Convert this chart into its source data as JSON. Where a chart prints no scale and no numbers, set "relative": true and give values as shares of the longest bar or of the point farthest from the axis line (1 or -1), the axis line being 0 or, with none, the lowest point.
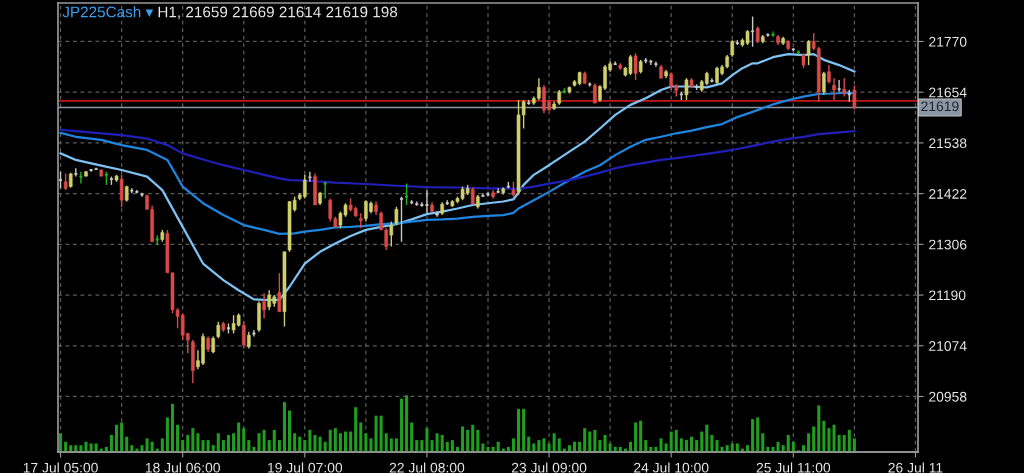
{
  "chart_data": [
    {
      "type": "candlestick",
      "title": "JP225Cash ▾",
      "subtitle": "H1, 21659 21669 21614 21619 198",
      "categories": [
        "17 Jul 05:00",
        null,
        null,
        null,
        null,
        null,
        null,
        null,
        null,
        null,
        null,
        null,
        null,
        null,
        null,
        null,
        null,
        null,
        null,
        null,
        null,
        null,
        null,
        null,
        "18 Jul 06:00",
        null,
        null,
        null,
        null,
        null,
        null,
        null,
        null,
        null,
        null,
        null,
        null,
        null,
        null,
        null,
        null,
        null,
        null,
        null,
        null,
        null,
        null,
        null,
        "19 Jul 07:00",
        null,
        null,
        null,
        null,
        null,
        null,
        null,
        null,
        null,
        null,
        null,
        null,
        null,
        null,
        null,
        null,
        null,
        null,
        null,
        null,
        null,
        null,
        null,
        "22 Jul 08:00",
        null,
        null,
        null,
        null,
        null,
        null,
        null,
        null,
        null,
        null,
        null,
        null,
        null,
        null,
        null,
        null,
        null,
        null,
        null,
        null,
        null,
        null,
        null,
        "23 Jul 09:00",
        null,
        null,
        null,
        null,
        null,
        null,
        null,
        null,
        null,
        null,
        null,
        null,
        null,
        null,
        null,
        null,
        null,
        null,
        null,
        null,
        null,
        null,
        null,
        "24 Jul 10:00",
        null,
        null,
        null,
        null,
        null,
        null,
        null,
        null,
        null,
        null,
        null,
        null,
        null,
        null,
        null,
        null,
        null,
        null,
        null,
        null,
        null,
        null,
        null,
        "25 Jul 11:00",
        null,
        null,
        null,
        null,
        null,
        null,
        null,
        null,
        null,
        null,
        null,
        null,
        null,
        null,
        null,
        null,
        null,
        null,
        null,
        null,
        null,
        null,
        null,
        "26 Jul 11"
      ],
      "ohlc": [
        [
          21453,
          21472,
          21434,
          21453
        ],
        [
          21449,
          21468,
          21430,
          21434
        ],
        [
          21438,
          21470,
          21436,
          21467
        ],
        [
          21467,
          21480,
          21461,
          21467
        ],
        [
          21461,
          21472,
          21445,
          21461
        ],
        [
          21462,
          21474,
          21461,
          21472
        ],
        [
          21476,
          21478,
          21472,
          21476
        ],
        [
          21478,
          21481,
          21476,
          21478
        ],
        [
          21476,
          21478,
          21461,
          21462
        ],
        [
          21465,
          21472,
          21442,
          21465
        ],
        [
          21455,
          21461,
          21442,
          21455
        ],
        [
          21453,
          21465,
          21449,
          21462
        ],
        [
          21455,
          21465,
          21391,
          21407
        ],
        [
          21407,
          21440,
          21404,
          21438
        ],
        [
          21429,
          21434,
          21423,
          21429
        ],
        [
          21426,
          21430,
          21423,
          21426
        ],
        [
          21420,
          21424,
          21415,
          21420
        ],
        [
          21417,
          21420,
          21386,
          21386
        ],
        [
          21386,
          21394,
          21312,
          21312
        ],
        [
          21317,
          21327,
          21304,
          21317
        ],
        [
          21317,
          21339,
          21312,
          21333
        ],
        [
          21331,
          21339,
          21241,
          21241
        ],
        [
          21241,
          21241,
          21148,
          21156
        ],
        [
          21156,
          21160,
          21114,
          21141
        ],
        [
          21144,
          21148,
          21087,
          21098
        ],
        [
          21102,
          21102,
          21057,
          21087
        ],
        [
          21083,
          21087,
          20988,
          21017
        ],
        [
          21026,
          21064,
          21020,
          21040
        ],
        [
          21034,
          21102,
          21030,
          21095
        ],
        [
          21091,
          21095,
          21060,
          21066
        ],
        [
          21060,
          21095,
          21057,
          21091
        ],
        [
          21095,
          21129,
          21091,
          21121
        ],
        [
          21125,
          21129,
          21106,
          21110
        ],
        [
          21114,
          21125,
          21102,
          21114
        ],
        [
          21110,
          21144,
          21102,
          21125
        ],
        [
          21121,
          21148,
          21118,
          21144
        ],
        [
          21121,
          21129,
          21068,
          21076
        ],
        [
          21072,
          21106,
          21068,
          21098
        ],
        [
          21102,
          21110,
          21095,
          21102
        ],
        [
          21110,
          21175,
          21106,
          21171
        ],
        [
          21175,
          21194,
          21137,
          21156
        ],
        [
          21163,
          21201,
          21156,
          21190
        ],
        [
          21171,
          21190,
          21163,
          21186
        ],
        [
          21196,
          21240,
          21152,
          21152
        ],
        [
          21152,
          21289,
          21118,
          21289
        ],
        [
          21293,
          21404,
          21289,
          21404
        ],
        [
          21385,
          21415,
          21381,
          21407
        ],
        [
          21411,
          21423,
          21407,
          21419
        ],
        [
          21415,
          21465,
          21411,
          21453
        ],
        [
          21459,
          21472,
          21449,
          21459
        ],
        [
          21461,
          21468,
          21396,
          21396
        ],
        [
          21400,
          21426,
          21396,
          21423
        ],
        [
          21445,
          21449,
          21411,
          21445
        ],
        [
          21407,
          21411,
          21358,
          21365
        ],
        [
          21365,
          21369,
          21343,
          21346
        ],
        [
          21350,
          21381,
          21343,
          21377
        ],
        [
          21373,
          21400,
          21369,
          21396
        ],
        [
          21396,
          21411,
          21381,
          21385
        ],
        [
          21388,
          21392,
          21369,
          21371
        ],
        [
          21365,
          21377,
          21343,
          21360
        ],
        [
          21365,
          21407,
          21358,
          21404
        ],
        [
          21381,
          21404,
          21377,
          21400
        ],
        [
          21396,
          21404,
          21373,
          21381
        ],
        [
          21377,
          21381,
          21339,
          21339
        ],
        [
          21339,
          21343,
          21293,
          21301
        ],
        [
          21327,
          21358,
          21301,
          21350
        ],
        [
          21354,
          21392,
          21350,
          21386
        ],
        [
          21410,
          21415,
          21312,
          21410
        ],
        [
          21415,
          21445,
          21396,
          21415
        ],
        [
          21402,
          21407,
          21398,
          21402
        ],
        [
          21398,
          21404,
          21394,
          21398
        ],
        [
          21396,
          21402,
          21392,
          21396
        ],
        [
          21396,
          21430,
          21377,
          21396
        ],
        [
          21396,
          21402,
          21381,
          21381
        ],
        [
          21377,
          21381,
          21369,
          21373
        ],
        [
          21377,
          21402,
          21373,
          21398
        ],
        [
          21400,
          21407,
          21396,
          21400
        ],
        [
          21394,
          21407,
          21392,
          21404
        ],
        [
          21404,
          21415,
          21400,
          21411
        ],
        [
          21411,
          21438,
          21407,
          21432
        ],
        [
          21423,
          21442,
          21419,
          21434
        ],
        [
          21432,
          21436,
          21398,
          21398
        ],
        [
          21392,
          21419,
          21388,
          21415
        ],
        [
          21417,
          21423,
          21415,
          21417
        ],
        [
          21420,
          21426,
          21417,
          21420
        ],
        [
          21424,
          21430,
          21411,
          21415
        ],
        [
          21426,
          21434,
          21423,
          21426
        ],
        [
          21424,
          21436,
          21420,
          21433
        ],
        [
          21438,
          21449,
          21434,
          21438
        ],
        [
          21430,
          21449,
          21415,
          21419
        ],
        [
          21426,
          21636,
          21419,
          21602
        ],
        [
          21602,
          21636,
          21571,
          21632
        ],
        [
          21629,
          21636,
          21625,
          21629
        ],
        [
          21629,
          21644,
          21625,
          21640
        ],
        [
          21640,
          21686,
          21636,
          21665
        ],
        [
          21665,
          21670,
          21606,
          21613
        ],
        [
          21632,
          21636,
          21613,
          21613
        ],
        [
          21617,
          21632,
          21613,
          21627
        ],
        [
          21629,
          21659,
          21625,
          21655
        ],
        [
          21655,
          21663,
          21651,
          21655
        ],
        [
          21655,
          21667,
          21651,
          21665
        ],
        [
          21670,
          21682,
          21667,
          21678
        ],
        [
          21674,
          21701,
          21670,
          21699
        ],
        [
          21697,
          21701,
          21674,
          21674
        ],
        [
          21672,
          21676,
          21667,
          21672
        ],
        [
          21670,
          21674,
          21629,
          21629
        ],
        [
          21636,
          21670,
          21632,
          21667
        ],
        [
          21663,
          21716,
          21659,
          21712
        ],
        [
          21705,
          21724,
          21701,
          21719
        ],
        [
          21718,
          21724,
          21716,
          21718
        ],
        [
          21716,
          21720,
          21705,
          21709
        ],
        [
          21693,
          21712,
          21690,
          21709
        ],
        [
          21697,
          21739,
          21693,
          21735
        ],
        [
          21737,
          21743,
          21682,
          21697
        ],
        [
          21701,
          21728,
          21697,
          21724
        ],
        [
          21726,
          21732,
          21720,
          21726
        ],
        [
          21724,
          21728,
          21716,
          21724
        ],
        [
          21718,
          21724,
          21712,
          21718
        ],
        [
          21712,
          21716,
          21686,
          21686
        ],
        [
          21691,
          21705,
          21686,
          21701
        ],
        [
          21696,
          21699,
          21659,
          21667
        ],
        [
          21668,
          21672,
          21644,
          21658
        ],
        [
          21649,
          21655,
          21636,
          21649
        ],
        [
          21648,
          21686,
          21636,
          21682
        ],
        [
          21682,
          21686,
          21663,
          21667
        ],
        [
          21666,
          21672,
          21659,
          21666
        ],
        [
          21659,
          21682,
          21655,
          21678
        ],
        [
          21674,
          21701,
          21670,
          21697
        ],
        [
          21680,
          21686,
          21676,
          21680
        ],
        [
          21676,
          21712,
          21672,
          21709
        ],
        [
          21697,
          21716,
          21693,
          21712
        ],
        [
          21712,
          21739,
          21709,
          21735
        ],
        [
          21739,
          21773,
          21735,
          21770
        ],
        [
          21766,
          21773,
          21762,
          21766
        ],
        [
          21762,
          21777,
          21758,
          21773
        ],
        [
          21766,
          21796,
          21762,
          21793
        ],
        [
          21793,
          21827,
          21758,
          21793
        ],
        [
          21800,
          21804,
          21766,
          21770
        ],
        [
          21770,
          21785,
          21766,
          21781
        ],
        [
          21785,
          21789,
          21781,
          21785
        ],
        [
          21785,
          21793,
          21781,
          21785
        ],
        [
          21781,
          21785,
          21762,
          21767
        ],
        [
          21766,
          21781,
          21762,
          21777
        ],
        [
          21770,
          21773,
          21750,
          21754
        ],
        [
          21752,
          21754,
          21748,
          21752
        ],
        [
          21745,
          21750,
          21741,
          21745
        ],
        [
          21739,
          21743,
          21709,
          21716
        ],
        [
          21739,
          21773,
          21716,
          21770
        ],
        [
          21770,
          21789,
          21750,
          21754
        ],
        [
          21754,
          21758,
          21632,
          21655
        ],
        [
          21655,
          21701,
          21648,
          21697
        ],
        [
          21701,
          21716,
          21674,
          21678
        ],
        [
          21670,
          21686,
          21636,
          21659
        ],
        [
          21661,
          21682,
          21655,
          21661
        ],
        [
          21661,
          21686,
          21644,
          21651
        ],
        [
          21649,
          21659,
          21632,
          21649
        ],
        [
          21659,
          21669,
          21614,
          21619
        ],
        null,
        null,
        null,
        null,
        null,
        null,
        null,
        null,
        null,
        null,
        null,
        null
      ],
      "colors": [
        "#c8c8c8",
        "#d94a4a",
        "#cfcf6e",
        "#c8c8c8",
        "#22b422",
        "#cfcf6e",
        "#c8c8c8",
        "#c8c8c8",
        "#d94a4a",
        "#22b422",
        "#c8c8c8",
        "#cfcf6e",
        "#d94a4a",
        "#cfcf6e",
        "#c8c8c8",
        "#c8c8c8",
        "#c8c8c8",
        "#d94a4a",
        "#d94a4a",
        "#22b422",
        "#cfcf6e",
        "#d94a4a",
        "#d94a4a",
        "#d94a4a",
        "#d94a4a",
        "#d94a4a",
        "#d94a4a",
        "#cfcf6e",
        "#cfcf6e",
        "#d94a4a",
        "#cfcf6e",
        "#cfcf6e",
        "#d94a4a",
        "#c8c8c8",
        "#cfcf6e",
        "#cfcf6e",
        "#d94a4a",
        "#cfcf6e",
        "#c8c8c8",
        "#cfcf6e",
        "#d94a4a",
        "#cfcf6e",
        "#cfcf6e",
        "#d94a4a",
        "#cfcf6e",
        "#cfcf6e",
        "#cfcf6e",
        "#cfcf6e",
        "#cfcf6e",
        "#c8c8c8",
        "#d94a4a",
        "#cfcf6e",
        "#22b422",
        "#d94a4a",
        "#d94a4a",
        "#cfcf6e",
        "#cfcf6e",
        "#d94a4a",
        "#d94a4a",
        "#d94a4a",
        "#cfcf6e",
        "#cfcf6e",
        "#d94a4a",
        "#d94a4a",
        "#d94a4a",
        "#cfcf6e",
        "#cfcf6e",
        "#c8c8c8",
        "#22b422",
        "#c8c8c8",
        "#c8c8c8",
        "#c8c8c8",
        "#c8c8c8",
        "#d94a4a",
        "#c8c8c8",
        "#cfcf6e",
        "#c8c8c8",
        "#cfcf6e",
        "#cfcf6e",
        "#cfcf6e",
        "#cfcf6e",
        "#d94a4a",
        "#cfcf6e",
        "#c8c8c8",
        "#c8c8c8",
        "#d94a4a",
        "#c8c8c8",
        "#cfcf6e",
        "#c8c8c8",
        "#d94a4a",
        "#cfcf6e",
        "#cfcf6e",
        "#c8c8c8",
        "#cfcf6e",
        "#cfcf6e",
        "#d94a4a",
        "#d94a4a",
        "#cfcf6e",
        "#cfcf6e",
        "#22b422",
        "#cfcf6e",
        "#cfcf6e",
        "#cfcf6e",
        "#d94a4a",
        "#c8c8c8",
        "#d94a4a",
        "#cfcf6e",
        "#cfcf6e",
        "#cfcf6e",
        "#c8c8c8",
        "#d94a4a",
        "#cfcf6e",
        "#cfcf6e",
        "#d94a4a",
        "#cfcf6e",
        "#c8c8c8",
        "#c8c8c8",
        "#c8c8c8",
        "#d94a4a",
        "#cfcf6e",
        "#d94a4a",
        "#d94a4a",
        "#c8c8c8",
        "#cfcf6e",
        "#d94a4a",
        "#c8c8c8",
        "#cfcf6e",
        "#cfcf6e",
        "#c8c8c8",
        "#cfcf6e",
        "#cfcf6e",
        "#cfcf6e",
        "#cfcf6e",
        "#c8c8c8",
        "#cfcf6e",
        "#cfcf6e",
        "#c8c8c8",
        "#d94a4a",
        "#cfcf6e",
        "#c8c8c8",
        "#22b422",
        "#d94a4a",
        "#cfcf6e",
        "#d94a4a",
        "#c8c8c8",
        "#22b422",
        "#d94a4a",
        "#cfcf6e",
        "#d94a4a",
        "#d94a4a",
        "#cfcf6e",
        "#d94a4a",
        "#d94a4a",
        "#c8c8c8",
        "#d94a4a",
        "#c8c8c8",
        "#d94a4a",
        null,
        null,
        null,
        null,
        null,
        null,
        null,
        null,
        null,
        null,
        null,
        null
      ],
      "series": [
        {
          "type": "line",
          "color": "#7ec3f5",
          "values": [
            21514,
            null,
            null,
            21499,
            null,
            null,
            null,
            null,
            21486,
            null,
            null,
            null,
            21476,
            null,
            null,
            null,
            null,
            21461,
            null,
            null,
            21430,
            null,
            null,
            null,
            21346,
            null,
            null,
            null,
            21262,
            null,
            null,
            null,
            21224,
            null,
            null,
            21201,
            null,
            null,
            21180,
            null,
            21179,
            null,
            null,
            21179,
            null,
            21209,
            null,
            null,
            21262,
            null,
            null,
            21289,
            null,
            null,
            21308,
            null,
            null,
            21325,
            null,
            null,
            21339,
            null,
            null,
            21346,
            null,
            null,
            21352,
            null,
            null,
            21363,
            null,
            null,
            21375,
            null,
            null,
            21381,
            null,
            null,
            21388,
            null,
            null,
            21396,
            null,
            null,
            21400,
            null,
            null,
            21404,
            null,
            21409,
            21424,
            21442,
            null,
            21465,
            null,
            null,
            21487,
            null,
            null,
            null,
            21518,
            null,
            null,
            21541,
            null,
            null,
            21571,
            null,
            null,
            21602,
            null,
            null,
            21625,
            null,
            null,
            21640,
            null,
            null,
            21659,
            null,
            21667,
            null,
            null,
            null,
            21667,
            null,
            null,
            21665,
            null,
            null,
            21674,
            null,
            21693,
            null,
            21709,
            null,
            21720,
            21720,
            null,
            null,
            21734,
            null,
            null,
            21741,
            null,
            null,
            21739,
            null,
            21741,
            null,
            21728,
            null,
            null,
            21716,
            null,
            null,
            21701,
            null,
            null,
            null,
            null,
            null,
            null,
            null,
            null,
            null,
            null,
            null,
            null
          ]
        },
        {
          "type": "line",
          "color": "#1e86e0",
          "values": [
            21561,
            null,
            null,
            21552,
            null,
            null,
            null,
            null,
            21545,
            null,
            null,
            null,
            21533,
            null,
            null,
            null,
            null,
            21522,
            null,
            null,
            null,
            21499,
            null,
            null,
            21438,
            null,
            null,
            null,
            21400,
            null,
            null,
            null,
            21373,
            null,
            null,
            null,
            21350,
            null,
            null,
            null,
            21339,
            null,
            null,
            21330,
            null,
            null,
            21331,
            null,
            21335,
            null,
            null,
            21339,
            null,
            null,
            21345,
            null,
            null,
            21346,
            null,
            null,
            21348,
            null,
            null,
            21352,
            null,
            null,
            21354,
            null,
            null,
            21358,
            null,
            null,
            21362,
            null,
            null,
            21363,
            null,
            null,
            21365,
            null,
            null,
            21369,
            null,
            null,
            21371,
            null,
            null,
            21373,
            null,
            21378,
            21388,
            null,
            null,
            21407,
            null,
            null,
            21426,
            null,
            null,
            null,
            21453,
            null,
            null,
            21472,
            null,
            null,
            21487,
            null,
            null,
            21510,
            null,
            null,
            21529,
            null,
            null,
            21545,
            null,
            null,
            21552,
            null,
            null,
            21560,
            null,
            null,
            21566,
            null,
            null,
            21574,
            null,
            null,
            21581,
            null,
            null,
            21597,
            null,
            null,
            21609,
            null,
            null,
            null,
            21626,
            null,
            null,
            21636,
            null,
            null,
            21644,
            null,
            null,
            21650,
            null,
            null,
            21651,
            null,
            null,
            21653,
            21651,
            null,
            null,
            null,
            null,
            null,
            null,
            null,
            null,
            null,
            null,
            null,
            null
          ]
        },
        {
          "type": "line",
          "color": "#2020b8",
          "values": [
            21568,
            null,
            null,
            21565,
            null,
            null,
            null,
            null,
            21560,
            null,
            null,
            null,
            21556,
            null,
            null,
            null,
            null,
            21548,
            null,
            null,
            null,
            21533,
            null,
            null,
            21514,
            null,
            null,
            null,
            21500,
            null,
            null,
            null,
            21487,
            null,
            null,
            null,
            21476,
            null,
            null,
            null,
            21465,
            null,
            null,
            21457,
            null,
            21453,
            null,
            null,
            21452,
            null,
            null,
            null,
            null,
            null,
            21447,
            null,
            null,
            null,
            null,
            null,
            21444,
            null,
            null,
            null,
            null,
            null,
            21440,
            null,
            null,
            null,
            null,
            null,
            21437,
            null,
            null,
            null,
            null,
            null,
            21436,
            null,
            null,
            null,
            null,
            null,
            21434,
            null,
            null,
            null,
            null,
            null,
            21433,
            null,
            null,
            21438,
            null,
            null,
            21445,
            null,
            null,
            null,
            21453,
            null,
            null,
            21461,
            null,
            null,
            21470,
            null,
            null,
            21480,
            null,
            null,
            21487,
            null,
            null,
            21493,
            null,
            null,
            21499,
            null,
            null,
            21503,
            null,
            null,
            21508,
            null,
            null,
            21513,
            null,
            null,
            21518,
            null,
            null,
            21524,
            null,
            null,
            21531,
            null,
            null,
            null,
            21541,
            null,
            null,
            21547,
            null,
            null,
            21552,
            null,
            null,
            21558,
            null,
            null,
            21561,
            null,
            null,
            null,
            21565,
            null,
            null,
            null,
            null,
            null,
            null,
            null,
            null,
            null,
            null,
            null,
            null
          ]
        }
      ],
      "ylim": [
        20831,
        21858
      ],
      "yticks": [
        20958,
        21074,
        21190,
        21306,
        21422,
        21538,
        21654,
        21770
      ],
      "grid": true,
      "ref_lines": [
        {
          "axis": "y",
          "value": 21634,
          "label": null,
          "color": "#c01818"
        },
        {
          "axis": "y",
          "value": 21619,
          "label": "21619",
          "color": "#8a96a3"
        }
      ]
    },
    {
      "type": "bar",
      "relative": true,
      "color": "#1f9e1f",
      "categories": [
        null,
        null,
        null,
        null,
        null,
        null,
        null,
        null,
        null,
        null,
        null,
        null,
        null,
        null,
        null,
        null,
        null,
        null,
        null,
        null,
        null,
        null,
        null,
        null,
        null,
        null,
        null,
        null,
        null,
        null,
        null,
        null,
        null,
        null,
        null,
        null,
        null,
        null,
        null,
        null,
        null,
        null,
        null,
        null,
        null,
        null,
        null,
        null,
        null,
        null,
        null,
        null,
        null,
        null,
        null,
        null,
        null,
        null,
        null,
        null,
        null,
        null,
        null,
        null,
        null,
        null,
        null,
        null,
        null,
        null,
        null,
        null,
        null,
        null,
        null,
        null,
        null,
        null,
        null,
        null,
        null,
        null,
        null,
        null,
        null,
        null,
        null,
        null,
        null,
        null,
        null,
        null,
        null,
        null,
        null,
        null,
        null,
        null,
        null,
        null,
        null,
        null,
        null,
        null,
        null,
        null,
        null,
        null,
        null,
        null,
        null,
        null,
        null,
        null,
        null,
        null,
        null,
        null,
        null,
        null,
        null,
        null,
        null,
        null,
        null,
        null,
        null,
        null,
        null,
        null,
        null,
        null,
        null,
        null,
        null,
        null,
        null,
        null,
        null,
        null,
        null,
        null,
        null,
        null,
        null,
        null,
        null,
        null,
        null,
        null,
        null,
        null,
        null,
        null,
        null,
        null,
        null,
        null,
        null,
        null,
        null,
        null,
        null,
        null,
        null,
        null,
        null,
        null,
        null
      ],
      "values": [
        0.33,
        0.18,
        0.12,
        0.12,
        0.12,
        0.18,
        0.15,
        0.15,
        0.06,
        0.09,
        0.3,
        0.48,
        0.52,
        0.27,
        0.12,
        0.06,
        0.12,
        0.24,
        0.18,
        0.06,
        0.24,
        0.61,
        0.85,
        0.48,
        0.21,
        0.3,
        0.42,
        0.33,
        0.21,
        0.21,
        0.12,
        0.33,
        0.21,
        0.3,
        0.33,
        0.52,
        0.42,
        0.21,
        0.09,
        0.33,
        0.39,
        0.21,
        0.39,
        0.21,
        0.88,
        0.73,
        0.33,
        0.27,
        0.21,
        0.39,
        0.3,
        0.27,
        0.18,
        0.39,
        0.42,
        0.33,
        0.36,
        0.36,
        0.79,
        0.52,
        0.33,
        0.24,
        0.64,
        0.64,
        0.33,
        0.24,
        0.24,
        0.94,
        1,
        0.52,
        0.21,
        0.21,
        0.42,
        0.21,
        0.33,
        0.3,
        0.18,
        0.21,
        0.09,
        0.45,
        0.39,
        0.48,
        0.39,
        0.15,
        0.09,
        0.09,
        0.18,
        0.06,
        0.09,
        0.24,
        0.76,
        0.76,
        0.27,
        0.15,
        0.21,
        0.24,
        0.15,
        0.33,
        0.24,
        0.06,
        0.12,
        0.18,
        0.18,
        0.42,
        0.36,
        0.39,
        0.21,
        0.3,
        0.15,
        0.09,
        0.09,
        0.06,
        0.18,
        0.52,
        0.55,
        0.21,
        0.09,
        0.09,
        0.24,
        0.15,
        0.36,
        0.39,
        0.24,
        0.21,
        0.27,
        0.21,
        0.36,
        0.48,
        0.3,
        0.21,
        0.09,
        0.12,
        0.15,
        0.15,
        0.06,
        0.12,
        0.58,
        0.61,
        0.33,
        0.09,
        0.09,
        0.18,
        0.12,
        0.3,
        0.18,
        0.03,
        0.12,
        0.33,
        0.45,
        0.82,
        0.55,
        0.42,
        0.48,
        0.3,
        0.3,
        0.39,
        0.24,
        null,
        null,
        null,
        null,
        null,
        null,
        null,
        null,
        null,
        null,
        null,
        null
      ]
    }
  ]
}
